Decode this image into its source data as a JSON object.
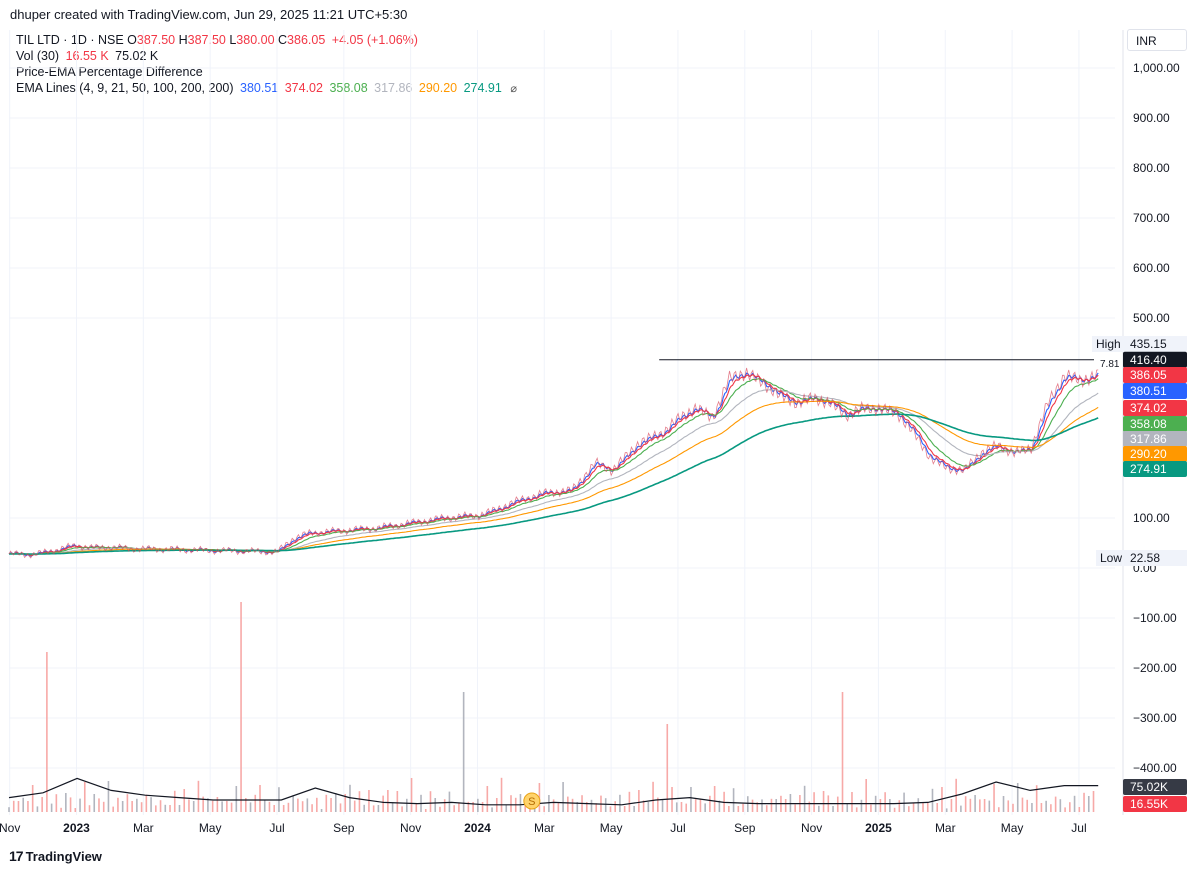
{
  "header": {
    "author_line": "dhuper created with TradingView.com, Jun 29, 2025 11:21 UTC+5:30",
    "symbol": "TIL LTD · 1D · NSE",
    "o_label": "O",
    "o_val": "387.50",
    "h_label": "H",
    "h_val": "387.50",
    "l_label": "L",
    "l_val": "380.00",
    "c_label": "C",
    "c_val": "386.05",
    "change": "+4.05 (+1.06%)",
    "vol_label": "Vol (30)",
    "vol_val1": "16.55 K",
    "vol_val2": "75.02 K",
    "pct_label": "Price-EMA Percentage Difference",
    "ema_label": "EMA Lines (4, 9, 21, 50, 100, 200, 200)",
    "ema_vals": [
      "380.51",
      "374.02",
      "358.08",
      "317.86",
      "290.20",
      "274.91"
    ],
    "currency": "INR"
  },
  "footer": {
    "brand": "TradingView",
    "brand_mark": "17"
  },
  "colors": {
    "ema4": "#2962ff",
    "ema9": "#f23645",
    "ema21": "#4caf50",
    "ema50": "#b2b5be",
    "ema100": "#ff9800",
    "ema200": "#089981",
    "vol_up": "#b2b5be",
    "vol_down": "#f7a9a7",
    "vol_ma": "#131722",
    "high_line": "#131722",
    "grid": "#f0f3fa"
  },
  "chart_data": {
    "type": "line",
    "y_axis": {
      "ticks": [
        1000,
        900,
        800,
        700,
        600,
        500,
        100,
        0,
        -100,
        -200,
        -300,
        -400
      ],
      "tick_labels": [
        "1,000.00",
        "900.00",
        "800.00",
        "700.00",
        "600.00",
        "500.00",
        "100.00",
        "0.00",
        "−100.00",
        "−200.00",
        "−300.00",
        "−400.00"
      ],
      "range": [
        -500,
        1100
      ]
    },
    "x_axis": {
      "labels": [
        "Nov",
        "2023",
        "Mar",
        "May",
        "Jul",
        "Sep",
        "Nov",
        "2024",
        "Mar",
        "May",
        "Jul",
        "Sep",
        "Nov",
        "2025",
        "Mar",
        "May",
        "Jul"
      ],
      "bold": [
        false,
        true,
        false,
        false,
        false,
        false,
        false,
        true,
        false,
        false,
        false,
        false,
        false,
        true,
        false,
        false,
        false
      ],
      "t": [
        0,
        2,
        4,
        6,
        8,
        10,
        12,
        14,
        16,
        18,
        20,
        22,
        24,
        26,
        28,
        30,
        32
      ]
    },
    "price_series": [
      {
        "t": 0,
        "v": 28
      },
      {
        "t": 0.6,
        "v": 27
      },
      {
        "t": 1,
        "v": 30
      },
      {
        "t": 1.5,
        "v": 38
      },
      {
        "t": 2,
        "v": 45
      },
      {
        "t": 2.5,
        "v": 40
      },
      {
        "t": 3,
        "v": 42
      },
      {
        "t": 3.5,
        "v": 39
      },
      {
        "t": 4,
        "v": 38
      },
      {
        "t": 5,
        "v": 37
      },
      {
        "t": 6,
        "v": 35
      },
      {
        "t": 7,
        "v": 34
      },
      {
        "t": 8,
        "v": 32
      },
      {
        "t": 8.5,
        "v": 60
      },
      {
        "t": 9,
        "v": 70
      },
      {
        "t": 10,
        "v": 75
      },
      {
        "t": 11,
        "v": 80
      },
      {
        "t": 12,
        "v": 90
      },
      {
        "t": 13,
        "v": 100
      },
      {
        "t": 14,
        "v": 105
      },
      {
        "t": 14.5,
        "v": 115
      },
      {
        "t": 15,
        "v": 130
      },
      {
        "t": 16,
        "v": 150
      },
      {
        "t": 16.8,
        "v": 155
      },
      {
        "t": 17.5,
        "v": 210
      },
      {
        "t": 18,
        "v": 195
      },
      {
        "t": 18.8,
        "v": 250
      },
      {
        "t": 19.5,
        "v": 270
      },
      {
        "t": 20,
        "v": 300
      },
      {
        "t": 20.5,
        "v": 320
      },
      {
        "t": 21,
        "v": 300
      },
      {
        "t": 21.5,
        "v": 380
      },
      {
        "t": 22,
        "v": 390
      },
      {
        "t": 22.5,
        "v": 370
      },
      {
        "t": 23,
        "v": 345
      },
      {
        "t": 23.5,
        "v": 330
      },
      {
        "t": 24,
        "v": 340
      },
      {
        "t": 24.5,
        "v": 330
      },
      {
        "t": 25,
        "v": 305
      },
      {
        "t": 25.5,
        "v": 320
      },
      {
        "t": 26,
        "v": 318
      },
      {
        "t": 26.5,
        "v": 310
      },
      {
        "t": 27,
        "v": 270
      },
      {
        "t": 27.5,
        "v": 220
      },
      {
        "t": 28,
        "v": 200
      },
      {
        "t": 28.5,
        "v": 195
      },
      {
        "t": 29,
        "v": 230
      },
      {
        "t": 29.5,
        "v": 245
      },
      {
        "t": 30,
        "v": 230
      },
      {
        "t": 30.5,
        "v": 240
      },
      {
        "t": 31,
        "v": 330
      },
      {
        "t": 31.5,
        "v": 385
      },
      {
        "t": 32,
        "v": 375
      },
      {
        "t": 32.5,
        "v": 386
      }
    ],
    "ema_series": [
      {
        "name": "EMA 4",
        "color_key": "ema4",
        "last": 380.51
      },
      {
        "name": "EMA 9",
        "color_key": "ema9",
        "last": 374.02
      },
      {
        "name": "EMA 21",
        "color_key": "ema21",
        "last": 358.08
      },
      {
        "name": "EMA 50",
        "color_key": "ema50",
        "last": 317.86
      },
      {
        "name": "EMA 100",
        "color_key": "ema100",
        "last": 290.2
      },
      {
        "name": "EMA 200",
        "color_key": "ema200",
        "last": 274.91
      }
    ],
    "volume": {
      "bars_seed": [
        0.08,
        0.12,
        0.05,
        0.22,
        0.1,
        0.3,
        0.06,
        0.15,
        0.42,
        0.09,
        0.18,
        0.07,
        0.25,
        0.11,
        0.05,
        0.14,
        0.35,
        0.08,
        0.2,
        0.06,
        0.12,
        0.4,
        0.09,
        0.17,
        0.05,
        0.28,
        0.1,
        0.07,
        0.13,
        0.19,
        0.08,
        0.06
      ],
      "ma": [
        0.12,
        0.16,
        0.28,
        0.18,
        0.14,
        0.12,
        0.1,
        0.1,
        0.1,
        0.2,
        0.12,
        0.08,
        0.07,
        0.08,
        0.06,
        0.06,
        0.08,
        0.07,
        0.06,
        0.1,
        0.12,
        0.08,
        0.07,
        0.07,
        0.07,
        0.07,
        0.07,
        0.08,
        0.15,
        0.25,
        0.18,
        0.22,
        0.22
      ],
      "ma_label": "75.02K",
      "vol_label": "16.55K"
    },
    "high": {
      "label": "High",
      "value": "435.15",
      "line_value": 416.4,
      "line_label": "416.40",
      "pct": "7.81",
      "t_start": 19.4,
      "t_end": 32.5
    },
    "low": {
      "label": "Low",
      "value": "22.58"
    },
    "price_labels": [
      {
        "text": "386.05",
        "color_key": "ema9",
        "value": 386.05
      },
      {
        "text": "380.51",
        "color_key": "ema4",
        "value": 380.51
      },
      {
        "text": "374.02",
        "color_key": "ema9",
        "value": 374.02
      },
      {
        "text": "358.08",
        "color_key": "ema21",
        "value": 358.08
      },
      {
        "text": "317.86",
        "color_key": "ema50",
        "value": 317.86
      },
      {
        "text": "290.20",
        "color_key": "ema100",
        "value": 290.2
      },
      {
        "text": "274.91",
        "color_key": "ema200",
        "value": 274.91
      }
    ],
    "event_badge": {
      "text": "S",
      "t": 15.6
    }
  }
}
